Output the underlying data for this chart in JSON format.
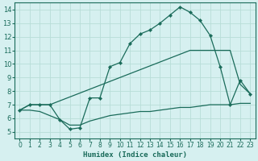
{
  "xlabel": "Humidex (Indice chaleur)",
  "bg_color": "#d6f0f0",
  "grid_color": "#b8ddd8",
  "line_color": "#1a6b5a",
  "xlim": [
    -0.5,
    23.5
  ],
  "ylim": [
    4.5,
    14.5
  ],
  "xticks": [
    0,
    1,
    2,
    3,
    4,
    5,
    6,
    7,
    8,
    9,
    10,
    11,
    12,
    13,
    14,
    15,
    16,
    17,
    18,
    19,
    20,
    21,
    22,
    23
  ],
  "yticks": [
    5,
    6,
    7,
    8,
    9,
    10,
    11,
    12,
    13,
    14
  ],
  "main_x": [
    0,
    1,
    2,
    3,
    4,
    5,
    6,
    7,
    8,
    9,
    10,
    11,
    12,
    13,
    14,
    15,
    16,
    17,
    18,
    19,
    20,
    21,
    22,
    23
  ],
  "main_y": [
    6.6,
    7.0,
    7.0,
    7.0,
    5.9,
    5.2,
    5.3,
    7.5,
    7.5,
    9.8,
    10.1,
    11.5,
    12.2,
    12.5,
    13.0,
    13.6,
    14.2,
    13.8,
    13.2,
    12.1,
    9.8,
    7.0,
    8.8,
    7.8
  ],
  "upper_x": [
    0,
    1,
    2,
    3,
    17,
    21,
    22,
    23
  ],
  "upper_y": [
    6.6,
    7.0,
    7.0,
    7.0,
    11.0,
    11.0,
    8.5,
    7.8
  ],
  "lower_x": [
    0,
    1,
    2,
    3,
    4,
    5,
    6,
    7,
    8,
    9,
    10,
    11,
    12,
    13,
    14,
    15,
    16,
    17,
    18,
    19,
    20,
    21,
    22,
    23
  ],
  "lower_y": [
    6.6,
    6.6,
    6.5,
    6.2,
    5.9,
    5.5,
    5.5,
    5.8,
    6.0,
    6.2,
    6.3,
    6.4,
    6.5,
    6.5,
    6.6,
    6.7,
    6.8,
    6.8,
    6.9,
    7.0,
    7.0,
    7.0,
    7.1,
    7.1
  ]
}
